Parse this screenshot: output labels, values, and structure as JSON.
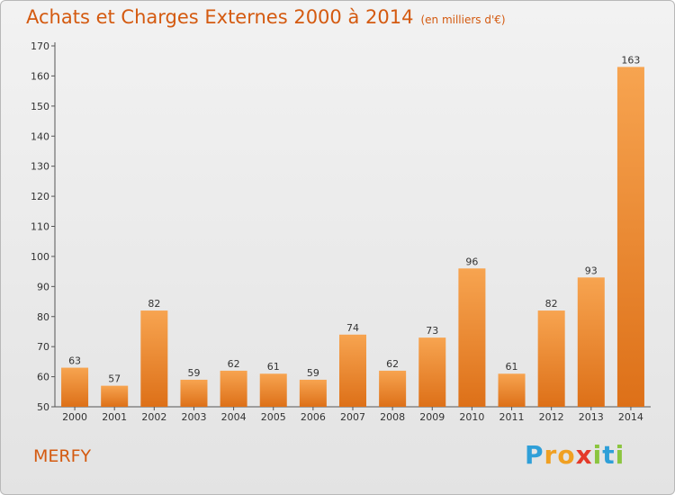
{
  "chart_data": {
    "type": "bar",
    "title": "Achats et Charges Externes 2000 à 2014",
    "subtitle": "(en milliers d'€)",
    "categories": [
      "2000",
      "2001",
      "2002",
      "2003",
      "2004",
      "2005",
      "2006",
      "2007",
      "2008",
      "2009",
      "2010",
      "2011",
      "2012",
      "2013",
      "2014"
    ],
    "values": [
      63,
      57,
      82,
      59,
      62,
      61,
      59,
      74,
      62,
      73,
      96,
      61,
      82,
      93,
      163
    ],
    "ylim": [
      50,
      170
    ],
    "yticks": [
      50,
      60,
      70,
      80,
      90,
      100,
      110,
      120,
      130,
      140,
      150,
      160,
      170
    ],
    "grid": false,
    "bar_color_top": "#f7a450",
    "bar_color_bottom": "#dd7018"
  },
  "footer": {
    "town": "MERFY",
    "logo_letters": [
      "P",
      "r",
      "o",
      "x",
      "i",
      "t",
      "i"
    ],
    "logo_colors": [
      "#2f9fd8",
      "#f0a022",
      "#f0a022",
      "#e43a2a",
      "#8bc53f",
      "#2f9fd8",
      "#8bc53f"
    ]
  },
  "colors": {
    "accent": "#d45a10",
    "axis": "#555555"
  }
}
